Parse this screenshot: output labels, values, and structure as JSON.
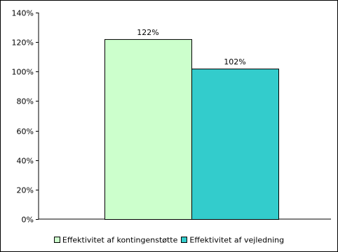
{
  "chart_data": {
    "type": "bar",
    "categories": [
      ""
    ],
    "series": [
      {
        "name": "Effektivitet af kontingenstøtte",
        "values": [
          122
        ],
        "label": "122%",
        "color": "#ccffcc"
      },
      {
        "name": "Effektivitet af vejledning",
        "values": [
          102
        ],
        "label": "102%",
        "color": "#33cccc"
      }
    ],
    "ylim": [
      0,
      140
    ],
    "yticks": [
      0,
      20,
      40,
      60,
      80,
      100,
      120,
      140
    ],
    "ytick_labels": [
      "0%",
      "20%",
      "40%",
      "60%",
      "80%",
      "100%",
      "120%",
      "140%"
    ],
    "value_format": "percent",
    "gridlines": false,
    "legend_position": "bottom",
    "title": "",
    "xlabel": "",
    "ylabel": ""
  }
}
